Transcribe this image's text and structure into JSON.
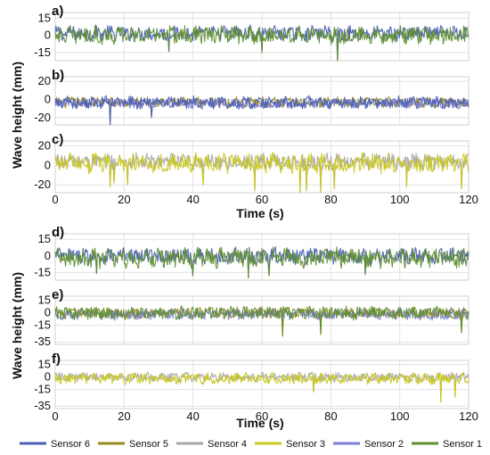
{
  "colors": {
    "Sensor 6": "#4a5fb5",
    "Sensor 5": "#9a8a1c",
    "Sensor 4": "#a8a8a8",
    "Sensor 3": "#c9c81f",
    "Sensor 2": "#7b7fd6",
    "Sensor 1": "#5f8f2e"
  },
  "legend": [
    "Sensor 6",
    "Sensor 5",
    "Sensor 4",
    "Sensor 3",
    "Sensor 2",
    "Sensor 1"
  ],
  "chart_data": [
    {
      "type": "line",
      "panel": "a)",
      "series_names": [
        "Sensor 6",
        "Sensor 1"
      ],
      "x_range": [
        0,
        120
      ],
      "yticks": [
        15,
        0,
        -15
      ],
      "ylim": [
        -22,
        20
      ],
      "amplitude": 7,
      "offset": 1,
      "spikes": [
        [
          82,
          -22
        ],
        [
          60,
          -15
        ],
        [
          33,
          -14
        ]
      ]
    },
    {
      "type": "line",
      "panel": "b)",
      "series_names": [
        "Sensor 5",
        "Sensor 2",
        "Sensor 6"
      ],
      "x_range": [
        0,
        120
      ],
      "yticks": [
        20,
        0,
        -20
      ],
      "ylim": [
        -28,
        25
      ],
      "amplitude": 6,
      "offset": -4,
      "spikes": [
        [
          16,
          -28
        ],
        [
          57,
          -27
        ],
        [
          28,
          -20
        ],
        [
          108,
          -18
        ]
      ]
    },
    {
      "type": "line",
      "panel": "c)",
      "series_names": [
        "Sensor 4",
        "Sensor 3"
      ],
      "x_range": [
        0,
        120
      ],
      "yticks": [
        20,
        0,
        -20
      ],
      "ylim": [
        -28,
        25
      ],
      "amplitude": 9,
      "offset": 3,
      "spikes": [
        [
          16,
          -22
        ],
        [
          17,
          -18
        ],
        [
          21,
          -20
        ],
        [
          43,
          -20
        ],
        [
          58,
          -26
        ],
        [
          71,
          -28
        ],
        [
          73,
          -26
        ],
        [
          77,
          -28
        ],
        [
          81,
          -24
        ],
        [
          102,
          -22
        ],
        [
          118,
          -24
        ]
      ]
    },
    {
      "type": "line",
      "panel": "d)",
      "series_names": [
        "Sensor 6",
        "Sensor 1"
      ],
      "x_range": [
        0,
        120
      ],
      "yticks": [
        15,
        0,
        -15
      ],
      "ylim": [
        -22,
        20
      ],
      "amplitude": 8,
      "offset": -1,
      "spikes": [
        [
          12,
          -16
        ],
        [
          40,
          -18
        ],
        [
          56,
          -20
        ],
        [
          62,
          -18
        ],
        [
          90,
          -17
        ]
      ]
    },
    {
      "type": "line",
      "panel": "e)",
      "series_names": [
        "Sensor 5",
        "Sensor 2",
        "Sensor 1"
      ],
      "x_range": [
        0,
        120
      ],
      "yticks": [
        15,
        0,
        -15,
        -35
      ],
      "ylim": [
        -38,
        20
      ],
      "amplitude": 7,
      "offset": -1,
      "spikes": [
        [
          66,
          -28
        ],
        [
          10,
          -22
        ],
        [
          77,
          -26
        ],
        [
          102,
          -22
        ],
        [
          118,
          -24
        ]
      ]
    },
    {
      "type": "line",
      "panel": "f)",
      "series_names": [
        "Sensor 4",
        "Sensor 3"
      ],
      "x_range": [
        0,
        120
      ],
      "yticks": [
        15,
        0,
        -15,
        -35
      ],
      "ylim": [
        -38,
        20
      ],
      "amplitude": 6,
      "offset": -1,
      "spikes": [
        [
          112,
          -30
        ],
        [
          116,
          -24
        ],
        [
          75,
          -18
        ]
      ]
    }
  ],
  "xticks": [
    0,
    20,
    40,
    60,
    80,
    100,
    120
  ],
  "xlabel_top": "Time (s)",
  "xlabel_bottom": "Time (s)",
  "ylabel_top": "Wave height (mm)",
  "ylabel_bottom": "Wave height (mm)"
}
